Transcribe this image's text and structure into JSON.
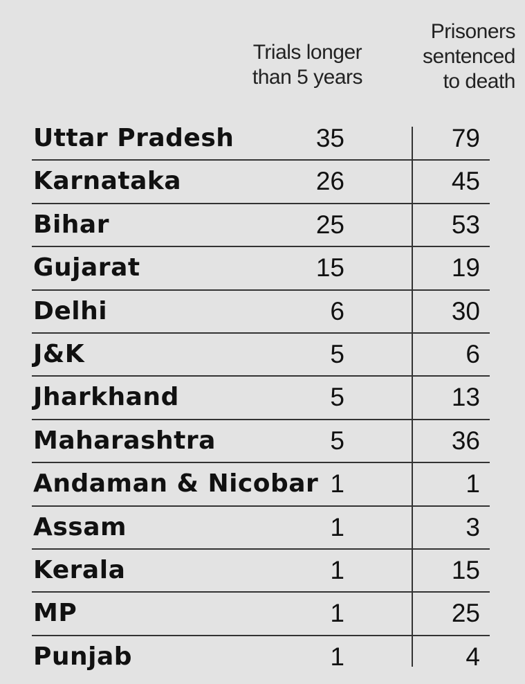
{
  "chart_data": {
    "type": "table",
    "columns": [
      "",
      "Trials longer\nthan 5 years",
      "Prisoners\nsentenced\nto death"
    ],
    "rows": [
      {
        "state": "Uttar Pradesh",
        "trials": 35,
        "deaths": 79
      },
      {
        "state": "Karnataka",
        "trials": 26,
        "deaths": 45
      },
      {
        "state": "Bihar",
        "trials": 25,
        "deaths": 53
      },
      {
        "state": "Gujarat",
        "trials": 15,
        "deaths": 19
      },
      {
        "state": "Delhi",
        "trials": 6,
        "deaths": 30
      },
      {
        "state": "J&K",
        "trials": 5,
        "deaths": 6
      },
      {
        "state": "Jharkhand",
        "trials": 5,
        "deaths": 13
      },
      {
        "state": "Maharashtra",
        "trials": 5,
        "deaths": 36
      },
      {
        "state": "Andaman & Nicobar",
        "trials": 1,
        "deaths": 1
      },
      {
        "state": "Assam",
        "trials": 1,
        "deaths": 3
      },
      {
        "state": "Kerala",
        "trials": 1,
        "deaths": 15
      },
      {
        "state": "MP",
        "trials": 1,
        "deaths": 25
      },
      {
        "state": "Punjab",
        "trials": 1,
        "deaths": 4
      }
    ]
  },
  "colors": {
    "background": "#e3e3e3",
    "text": "#111111",
    "rule": "#333333"
  }
}
